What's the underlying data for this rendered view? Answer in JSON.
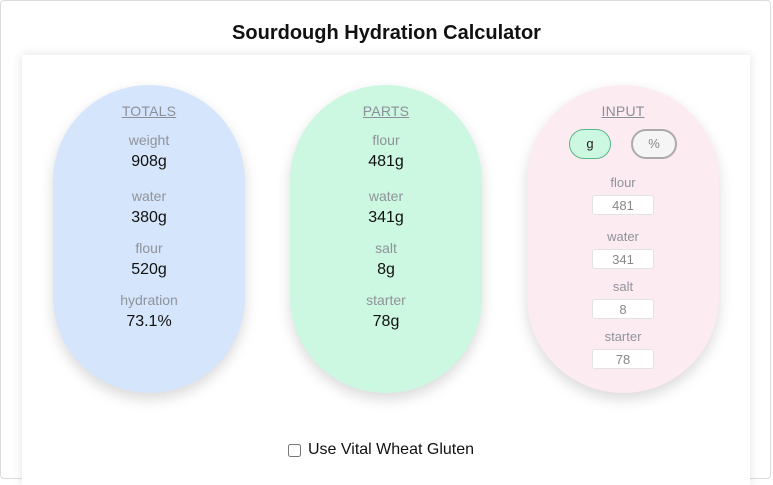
{
  "title": "Sourdough Hydration Calculator",
  "totals": {
    "heading": "TOTALS",
    "items": [
      {
        "label": "weight",
        "value": "908g"
      },
      {
        "label": "water",
        "value": "380g"
      },
      {
        "label": "flour",
        "value": "520g"
      },
      {
        "label": "hydration",
        "value": "73.1%"
      }
    ]
  },
  "parts": {
    "heading": "PARTS",
    "items": [
      {
        "label": "flour",
        "value": "481g"
      },
      {
        "label": "water",
        "value": "341g"
      },
      {
        "label": "salt",
        "value": "8g"
      },
      {
        "label": "starter",
        "value": "78g"
      }
    ]
  },
  "input": {
    "heading": "INPUT",
    "unit_buttons": {
      "grams": "g",
      "percent": "%",
      "selected": "g"
    },
    "fields": [
      {
        "label": "flour",
        "value": "481"
      },
      {
        "label": "water",
        "value": "341"
      },
      {
        "label": "salt",
        "value": "8"
      },
      {
        "label": "starter",
        "value": "78"
      }
    ]
  },
  "vital_wheat_gluten": {
    "label": "Use Vital Wheat Gluten",
    "checked": false
  },
  "colors": {
    "totals_bg": "#d5e5fc",
    "parts_bg": "#ccf7e0",
    "input_bg": "#fdebf2",
    "selected_unit": "#ccf7e0"
  }
}
